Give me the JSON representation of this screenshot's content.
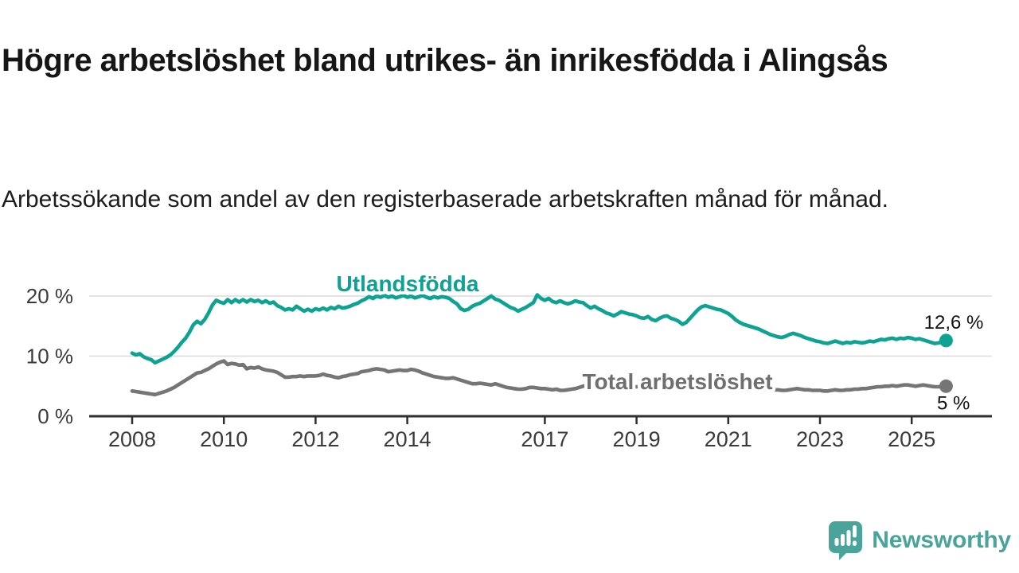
{
  "header": {
    "title": "Högre arbetslöshet bland utrikes- än inrikesfödda i Alingsås",
    "subtitle": "Arbetssökande som andel av den registerbaserade arbetskraften månad för månad."
  },
  "chart_data": {
    "type": "line",
    "x_unit": "month",
    "x_start": "2008-01",
    "x_end": "2025-10",
    "ylim": [
      0,
      22
    ],
    "grid": "horizontal",
    "legend_position": "inline",
    "yticks": [
      {
        "value": 0,
        "label": "0 %"
      },
      {
        "value": 10,
        "label": "10 %"
      },
      {
        "value": 20,
        "label": "20 %"
      }
    ],
    "xticks": [
      {
        "year": 2008,
        "label": "2008"
      },
      {
        "year": 2010,
        "label": "2010"
      },
      {
        "year": 2012,
        "label": "2012"
      },
      {
        "year": 2014,
        "label": "2014"
      },
      {
        "year": 2017,
        "label": "2017"
      },
      {
        "year": 2019,
        "label": "2019"
      },
      {
        "year": 2021,
        "label": "2021"
      },
      {
        "year": 2023,
        "label": "2023"
      },
      {
        "year": 2025,
        "label": "2025"
      }
    ],
    "series": [
      {
        "name": "Utlandsfödda",
        "color": "#0EA293",
        "end_label": "12,6 %",
        "end_value": 12.6,
        "values": [
          10.5,
          10.2,
          10.4,
          9.9,
          9.6,
          9.4,
          8.9,
          9.2,
          9.5,
          9.8,
          10.2,
          10.8,
          11.5,
          12.3,
          13.0,
          14.0,
          15.2,
          15.8,
          15.4,
          16.1,
          17.2,
          18.5,
          19.3,
          19.0,
          18.8,
          19.4,
          18.9,
          19.4,
          19.0,
          19.4,
          19.0,
          19.4,
          19.1,
          19.3,
          18.9,
          19.2,
          18.8,
          19.0,
          18.4,
          18.1,
          17.7,
          17.9,
          17.7,
          18.3,
          17.9,
          17.5,
          17.8,
          17.5,
          17.9,
          17.7,
          18.0,
          17.7,
          18.1,
          17.9,
          18.3,
          18.0,
          18.1,
          18.3,
          18.6,
          18.8,
          19.2,
          19.5,
          19.9,
          19.6,
          20.0,
          19.8,
          20.1,
          19.8,
          20.0,
          19.7,
          19.9,
          20.1,
          19.8,
          20.0,
          19.7,
          19.9,
          20.1,
          19.8,
          19.6,
          19.9,
          19.7,
          19.9,
          19.8,
          19.6,
          19.1,
          18.7,
          17.9,
          17.6,
          17.8,
          18.3,
          18.6,
          18.8,
          19.2,
          19.6,
          20.0,
          19.5,
          19.3,
          18.9,
          18.5,
          18.1,
          17.9,
          17.5,
          17.8,
          18.1,
          18.5,
          18.9,
          20.2,
          19.6,
          19.3,
          19.6,
          19.1,
          18.9,
          19.2,
          18.9,
          18.7,
          18.9,
          19.2,
          19.0,
          18.9,
          18.4,
          18.0,
          18.3,
          17.9,
          17.6,
          17.2,
          17.0,
          16.7,
          17.0,
          17.4,
          17.2,
          17.0,
          16.9,
          16.7,
          16.4,
          16.3,
          16.6,
          16.1,
          15.9,
          16.3,
          16.6,
          16.7,
          16.3,
          16.1,
          15.8,
          15.3,
          15.6,
          16.3,
          17.0,
          17.7,
          18.2,
          18.4,
          18.2,
          18.0,
          17.8,
          17.7,
          17.4,
          17.1,
          16.6,
          16.0,
          15.6,
          15.3,
          15.1,
          14.9,
          14.7,
          14.5,
          14.2,
          13.9,
          13.6,
          13.4,
          13.2,
          13.1,
          13.3,
          13.6,
          13.8,
          13.6,
          13.4,
          13.1,
          12.9,
          12.7,
          12.5,
          12.4,
          12.2,
          12.1,
          12.3,
          12.5,
          12.3,
          12.1,
          12.3,
          12.2,
          12.4,
          12.3,
          12.2,
          12.3,
          12.5,
          12.4,
          12.6,
          12.8,
          12.7,
          12.9,
          13.0,
          12.8,
          13.0,
          12.9,
          13.1,
          13.0,
          12.8,
          12.9,
          12.7,
          12.5,
          12.3,
          12.1,
          12.2,
          12.4,
          12.6
        ]
      },
      {
        "name": "Total arbetslöshet",
        "color": "#757575",
        "end_label": "5 %",
        "end_value": 5.0,
        "values": [
          4.2,
          4.1,
          4.0,
          3.9,
          3.8,
          3.7,
          3.6,
          3.8,
          4.0,
          4.2,
          4.5,
          4.8,
          5.2,
          5.6,
          6.0,
          6.4,
          6.8,
          7.2,
          7.3,
          7.6,
          7.9,
          8.3,
          8.7,
          9.0,
          9.2,
          8.6,
          8.8,
          8.7,
          8.5,
          8.6,
          7.9,
          8.1,
          8.0,
          8.2,
          7.9,
          7.7,
          7.6,
          7.5,
          7.3,
          6.9,
          6.5,
          6.5,
          6.6,
          6.6,
          6.7,
          6.6,
          6.7,
          6.7,
          6.7,
          6.8,
          7.0,
          6.8,
          6.7,
          6.5,
          6.4,
          6.6,
          6.7,
          6.9,
          7.0,
          7.1,
          7.4,
          7.5,
          7.6,
          7.8,
          7.9,
          7.8,
          7.7,
          7.4,
          7.5,
          7.6,
          7.7,
          7.6,
          7.6,
          7.8,
          7.7,
          7.5,
          7.2,
          7.0,
          6.8,
          6.6,
          6.5,
          6.4,
          6.3,
          6.3,
          6.4,
          6.2,
          6.0,
          5.8,
          5.6,
          5.4,
          5.4,
          5.5,
          5.4,
          5.3,
          5.2,
          5.4,
          5.2,
          5.0,
          4.8,
          4.7,
          4.6,
          4.5,
          4.5,
          4.6,
          4.8,
          4.8,
          4.7,
          4.6,
          4.6,
          4.5,
          4.4,
          4.5,
          4.3,
          4.3,
          4.4,
          4.5,
          4.6,
          4.8,
          5.0,
          5.1,
          5.2,
          5.1,
          5.0,
          4.9,
          4.8,
          4.9,
          4.8,
          4.9,
          5.0,
          4.9,
          4.8,
          4.9,
          4.9,
          5.0,
          4.9,
          4.8,
          4.9,
          5.0,
          5.1,
          5.0,
          5.1,
          5.2,
          5.3,
          5.4,
          5.5,
          5.7,
          5.9,
          6.0,
          6.0,
          5.9,
          5.8,
          5.7,
          5.6,
          5.5,
          5.4,
          5.3,
          5.2,
          5.1,
          5.0,
          4.9,
          4.8,
          4.8,
          4.7,
          4.6,
          4.6,
          4.5,
          4.5,
          4.4,
          4.4,
          4.4,
          4.3,
          4.3,
          4.4,
          4.5,
          4.6,
          4.5,
          4.4,
          4.4,
          4.3,
          4.3,
          4.3,
          4.2,
          4.2,
          4.3,
          4.4,
          4.3,
          4.3,
          4.4,
          4.4,
          4.5,
          4.5,
          4.6,
          4.6,
          4.7,
          4.8,
          4.9,
          4.9,
          5.0,
          5.0,
          5.1,
          5.0,
          5.1,
          5.2,
          5.2,
          5.1,
          5.0,
          5.1,
          5.2,
          5.1,
          5.0,
          4.9,
          4.9,
          5.0,
          5.0
        ]
      }
    ]
  },
  "footer": {
    "brand": "Newsworthy",
    "brand_color": "#4AA49A"
  }
}
